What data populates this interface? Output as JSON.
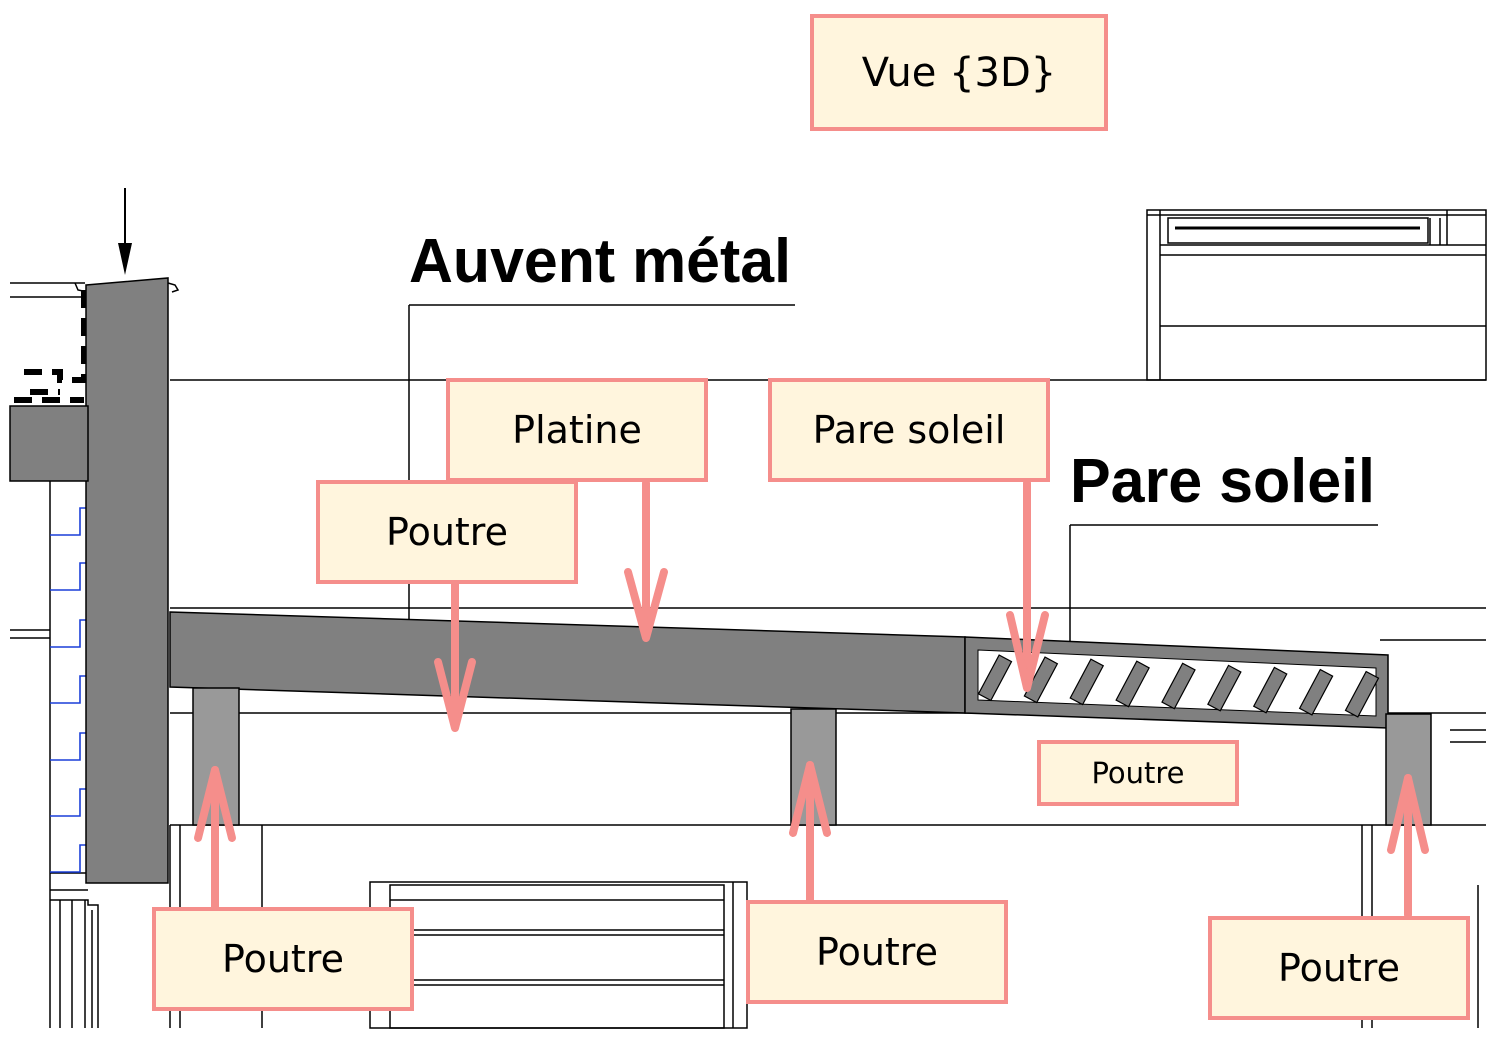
{
  "view_label": "Vue {3D}",
  "drawing_labels": {
    "awning": "Auvent métal",
    "sunshade": "Pare soleil"
  },
  "callouts": {
    "plate": "Platine",
    "sunshade": "Pare soleil",
    "beam_top": "Poutre",
    "beam_small": "Poutre",
    "beam_bottom_left": "Poutre",
    "beam_bottom_middle": "Poutre",
    "beam_bottom_right": "Poutre"
  },
  "colors": {
    "callout_border": "#f58e8b",
    "callout_fill": "#fff5dd",
    "arrow": "#f58e8b",
    "steel_dark": "#808080",
    "steel_light": "#999999",
    "cad_blue": "#1a3fd9"
  }
}
